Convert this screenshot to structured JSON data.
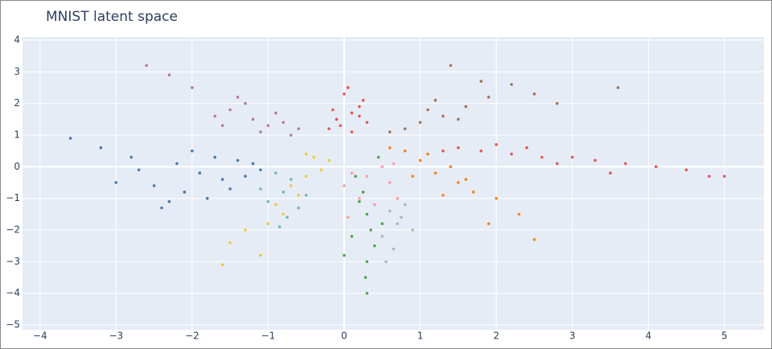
{
  "chart_data": {
    "type": "scatter",
    "title": "MNIST latent space",
    "xlim": [
      -4.23,
      5.52
    ],
    "ylim": [
      -5.15,
      4.1
    ],
    "xticks": [
      {
        "value": -4,
        "label": "−4"
      },
      {
        "value": -3,
        "label": "−3"
      },
      {
        "value": -2,
        "label": "−2"
      },
      {
        "value": -1,
        "label": "−1"
      },
      0,
      1,
      2,
      3,
      4,
      5
    ],
    "yticks": [
      {
        "value": -5,
        "label": "−5"
      },
      {
        "value": -4,
        "label": "−4"
      },
      {
        "value": -3,
        "label": "−3"
      },
      {
        "value": -2,
        "label": "−2"
      },
      {
        "value": -1,
        "label": "−1"
      },
      0,
      1,
      2,
      3,
      4
    ],
    "grid": true,
    "series": [
      {
        "color": "#4c78a8",
        "x": [
          -1.9,
          -2.2,
          -1.6,
          -1.4,
          -2.5,
          -2.8,
          -3.2,
          -1.1,
          -1.8,
          -2.0,
          -1.5,
          -2.4,
          -3.6,
          -1.3,
          -2.1,
          -1.7,
          -2.7,
          -3.0,
          -1.2,
          -2.3
        ],
        "values": [
          -0.2,
          0.1,
          -0.4,
          0.2,
          -0.6,
          0.3,
          0.6,
          -0.1,
          -1.0,
          0.5,
          -0.7,
          -1.3,
          0.9,
          -0.3,
          -0.8,
          0.3,
          -0.1,
          -0.5,
          0.1,
          -1.1
        ]
      },
      {
        "color": "#b279a2",
        "x": [
          -1.2,
          -1.0,
          -1.5,
          -0.8,
          -1.7,
          -1.3,
          -0.6,
          -2.0,
          -2.3,
          -1.1,
          -0.9,
          -1.6,
          -1.4,
          -2.6,
          -0.7
        ],
        "values": [
          1.5,
          1.3,
          1.8,
          1.4,
          1.6,
          2.0,
          1.2,
          2.5,
          2.9,
          1.1,
          1.7,
          1.3,
          2.2,
          3.2,
          1.0
        ]
      },
      {
        "color": "#e45756",
        "x": [
          0.1,
          -0.1,
          0.2,
          0.0,
          0.3,
          -0.2,
          0.1,
          0.25,
          -0.15,
          0.05,
          0.2,
          -0.05
        ],
        "values": [
          1.7,
          1.5,
          1.9,
          2.3,
          1.4,
          1.2,
          1.1,
          2.1,
          1.8,
          2.5,
          1.6,
          1.3
        ]
      },
      {
        "color": "#9d755d",
        "x": [
          1.3,
          1.0,
          1.6,
          0.8,
          1.9,
          2.2,
          1.1,
          1.5,
          0.6,
          2.5,
          1.8,
          1.2,
          2.8,
          1.4,
          3.6
        ],
        "values": [
          1.6,
          1.4,
          1.9,
          1.2,
          2.2,
          2.6,
          1.8,
          1.5,
          1.1,
          2.3,
          2.7,
          2.1,
          2.0,
          3.2,
          2.5
        ]
      },
      {
        "color": "#e45756",
        "x": [
          1.5,
          1.8,
          2.2,
          2.6,
          3.0,
          3.3,
          3.7,
          4.1,
          4.5,
          5.0,
          2.0,
          2.8,
          1.3,
          3.5,
          4.8,
          2.4
        ],
        "values": [
          0.6,
          0.5,
          0.4,
          0.3,
          0.3,
          0.2,
          0.1,
          0.0,
          -0.1,
          -0.3,
          0.7,
          0.1,
          0.5,
          -0.2,
          -0.3,
          0.6
        ]
      },
      {
        "color": "#f58518",
        "x": [
          1.0,
          1.2,
          0.8,
          1.5,
          1.7,
          1.4,
          2.0,
          0.9,
          1.3,
          2.3,
          1.1,
          1.9,
          0.6,
          2.5,
          1.6
        ],
        "values": [
          0.2,
          -0.2,
          0.5,
          -0.5,
          -0.8,
          0.0,
          -1.0,
          -0.3,
          -0.9,
          -1.5,
          0.4,
          -1.8,
          0.6,
          -2.3,
          -0.4
        ]
      },
      {
        "color": "#eeca3b",
        "x": [
          -0.5,
          -0.4,
          -0.7,
          -0.3,
          -0.9,
          -1.0,
          -1.3,
          -1.5,
          -0.6,
          -0.2,
          -1.1,
          -0.8,
          -1.6,
          -0.5
        ],
        "values": [
          -0.3,
          0.3,
          -0.6,
          -0.1,
          -1.2,
          -1.8,
          -2.0,
          -2.4,
          -0.9,
          0.2,
          -2.8,
          -1.5,
          -3.1,
          0.4
        ]
      },
      {
        "color": "#72b7b2",
        "x": [
          -0.8,
          -0.7,
          -1.0,
          -0.6,
          -0.9,
          -0.75,
          -1.1,
          -0.5,
          -0.85
        ],
        "values": [
          -0.8,
          -0.4,
          -1.1,
          -1.3,
          -0.2,
          -1.6,
          -0.7,
          -0.9,
          -1.9
        ]
      },
      {
        "color": "#ff9da6",
        "x": [
          0.1,
          0.0,
          0.2,
          0.5,
          0.6,
          0.4,
          0.7,
          0.05,
          0.65,
          0.3
        ],
        "values": [
          -0.2,
          -0.6,
          -1.0,
          0.0,
          -0.5,
          -1.2,
          -1.0,
          -1.6,
          0.1,
          -0.3
        ]
      },
      {
        "color": "#54a24b",
        "x": [
          0.3,
          0.25,
          0.35,
          0.2,
          0.4,
          0.3,
          0.15,
          0.5,
          0.28,
          0.1,
          0.45,
          0.3,
          0.0
        ],
        "values": [
          -1.5,
          -0.8,
          -2.0,
          -1.1,
          -2.5,
          -3.0,
          -0.3,
          -1.8,
          -3.5,
          -2.2,
          0.3,
          -4.0,
          -2.8
        ]
      },
      {
        "color": "#bab0ac",
        "x": [
          0.6,
          0.7,
          0.5,
          0.8,
          0.65,
          0.9,
          0.55,
          0.75
        ],
        "values": [
          -1.4,
          -1.8,
          -2.2,
          -1.2,
          -2.6,
          -2.0,
          -3.0,
          -1.6
        ]
      }
    ]
  }
}
